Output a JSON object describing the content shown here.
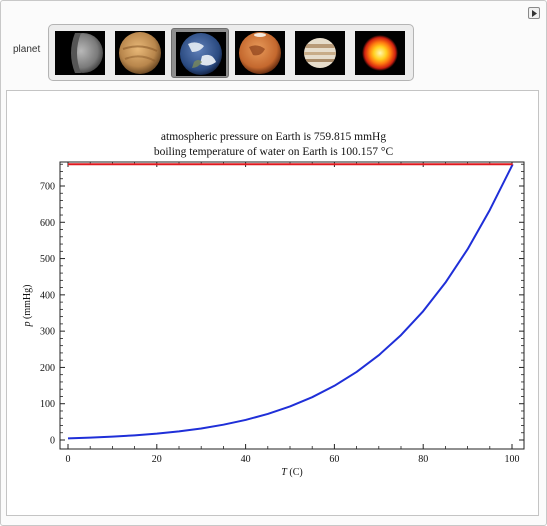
{
  "controls": {
    "planet_label": "planet",
    "planets": [
      {
        "name": "Mercury",
        "icon": "mercury-icon"
      },
      {
        "name": "Venus",
        "icon": "venus-icon"
      },
      {
        "name": "Earth",
        "icon": "earth-icon",
        "selected": true
      },
      {
        "name": "Mars",
        "icon": "mars-icon"
      },
      {
        "name": "Jupiter",
        "icon": "jupiter-icon"
      },
      {
        "name": "Sun",
        "icon": "sun-icon"
      }
    ],
    "play_icon": "play-icon"
  },
  "colors": {
    "curve": "#1f2fd8",
    "reference_line": "#e0191f",
    "selected_button": "#8e8e8e"
  },
  "chart_data": {
    "type": "line",
    "title_lines": [
      "atmospheric pressure on Earth is 759.815 mmHg",
      "boiling temperature of water on Earth is 100.157 °C"
    ],
    "xlabel_var": "T",
    "xlabel_unit": " (C)",
    "ylabel_var": "p",
    "ylabel_unit": " (mmHg)",
    "xlim": [
      0,
      100.157
    ],
    "ylim": [
      0,
      775
    ],
    "x_ticks": [
      0,
      20,
      40,
      60,
      80,
      100
    ],
    "y_ticks": [
      0,
      100,
      200,
      300,
      400,
      500,
      600,
      700
    ],
    "grid": false,
    "series": [
      {
        "kind": "curve",
        "x": [
          0,
          5,
          10,
          15,
          20,
          25,
          30,
          35,
          40,
          45,
          50,
          55,
          60,
          65,
          70,
          75,
          80,
          85,
          90,
          95,
          100.157
        ],
        "y": [
          4.6,
          6.5,
          9.2,
          12.8,
          17.5,
          23.8,
          31.8,
          42.2,
          55.3,
          71.9,
          92.5,
          118.0,
          149.4,
          187.5,
          233.7,
          289.1,
          355.1,
          433.6,
          525.8,
          634.0,
          759.815
        ]
      },
      {
        "kind": "reference",
        "x": [
          0,
          100.157
        ],
        "y": [
          759.815,
          759.815
        ]
      }
    ]
  }
}
